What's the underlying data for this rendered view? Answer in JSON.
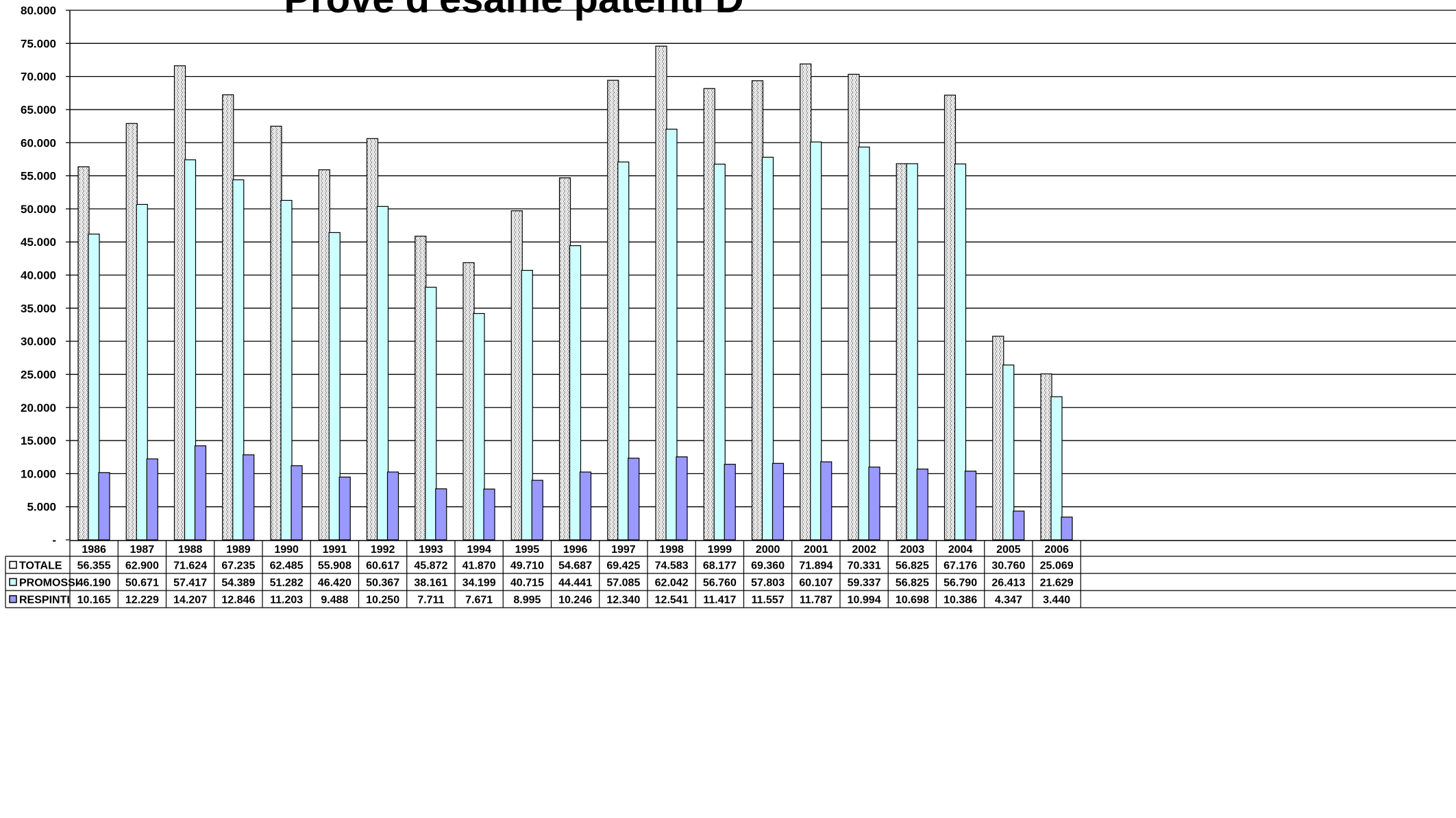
{
  "chart_data": {
    "type": "bar",
    "title": "Prove d'esame patenti D",
    "categories": [
      "1986",
      "1987",
      "1988",
      "1989",
      "1990",
      "1991",
      "1992",
      "1993",
      "1994",
      "1995",
      "1996",
      "1997",
      "1998",
      "1999",
      "2000",
      "2001",
      "2002",
      "2003",
      "2004",
      "2005",
      "2006"
    ],
    "ylim": [
      0,
      80000
    ],
    "yticks": [
      "-",
      "5.000",
      "10.000",
      "15.000",
      "20.000",
      "25.000",
      "30.000",
      "35.000",
      "40.000",
      "45.000",
      "50.000",
      "55.000",
      "60.000",
      "65.000",
      "70.000",
      "75.000",
      "80.000"
    ],
    "grid": true,
    "legend": "data-table",
    "series": [
      {
        "name": "TOTALE",
        "color": "#ffffff",
        "pattern": "dots",
        "values": [
          56355,
          62900,
          71624,
          67235,
          62485,
          55908,
          60617,
          45872,
          41870,
          49710,
          54687,
          69425,
          74583,
          68177,
          69360,
          71894,
          70331,
          56825,
          67176,
          30760,
          25069
        ],
        "labels": [
          "56.355",
          "62.900",
          "71.624",
          "67.235",
          "62.485",
          "55.908",
          "60.617",
          "45.872",
          "41.870",
          "49.710",
          "54.687",
          "69.425",
          "74.583",
          "68.177",
          "69.360",
          "71.894",
          "70.331",
          "56.825",
          "67.176",
          "30.760",
          "25.069"
        ]
      },
      {
        "name": "PROMOSSI",
        "color": "#ccffff",
        "values": [
          46190,
          50671,
          57417,
          54389,
          51282,
          46420,
          50367,
          38161,
          34199,
          40715,
          44441,
          57085,
          62042,
          56760,
          57803,
          60107,
          59337,
          56825,
          56790,
          26413,
          21629
        ],
        "labels": [
          "46.190",
          "50.671",
          "57.417",
          "54.389",
          "51.282",
          "46.420",
          "50.367",
          "38.161",
          "34.199",
          "40.715",
          "44.441",
          "57.085",
          "62.042",
          "56.760",
          "57.803",
          "60.107",
          "59.337",
          "56.825",
          "56.790",
          "26.413",
          "21.629"
        ]
      },
      {
        "name": "RESPINTI",
        "color": "#9999ff",
        "values": [
          10165,
          12229,
          14207,
          12846,
          11203,
          9488,
          10250,
          7711,
          7671,
          8995,
          10246,
          12340,
          12541,
          11417,
          11557,
          11787,
          10994,
          10698,
          10386,
          4347,
          3440
        ],
        "labels": [
          "10.165",
          "12.229",
          "14.207",
          "12.846",
          "11.203",
          "9.488",
          "10.250",
          "7.711",
          "7.671",
          "8.995",
          "10.246",
          "12.340",
          "12.541",
          "11.417",
          "11.557",
          "11.787",
          "10.994",
          "10.698",
          "10.386",
          "4.347",
          "3.440"
        ]
      }
    ]
  }
}
